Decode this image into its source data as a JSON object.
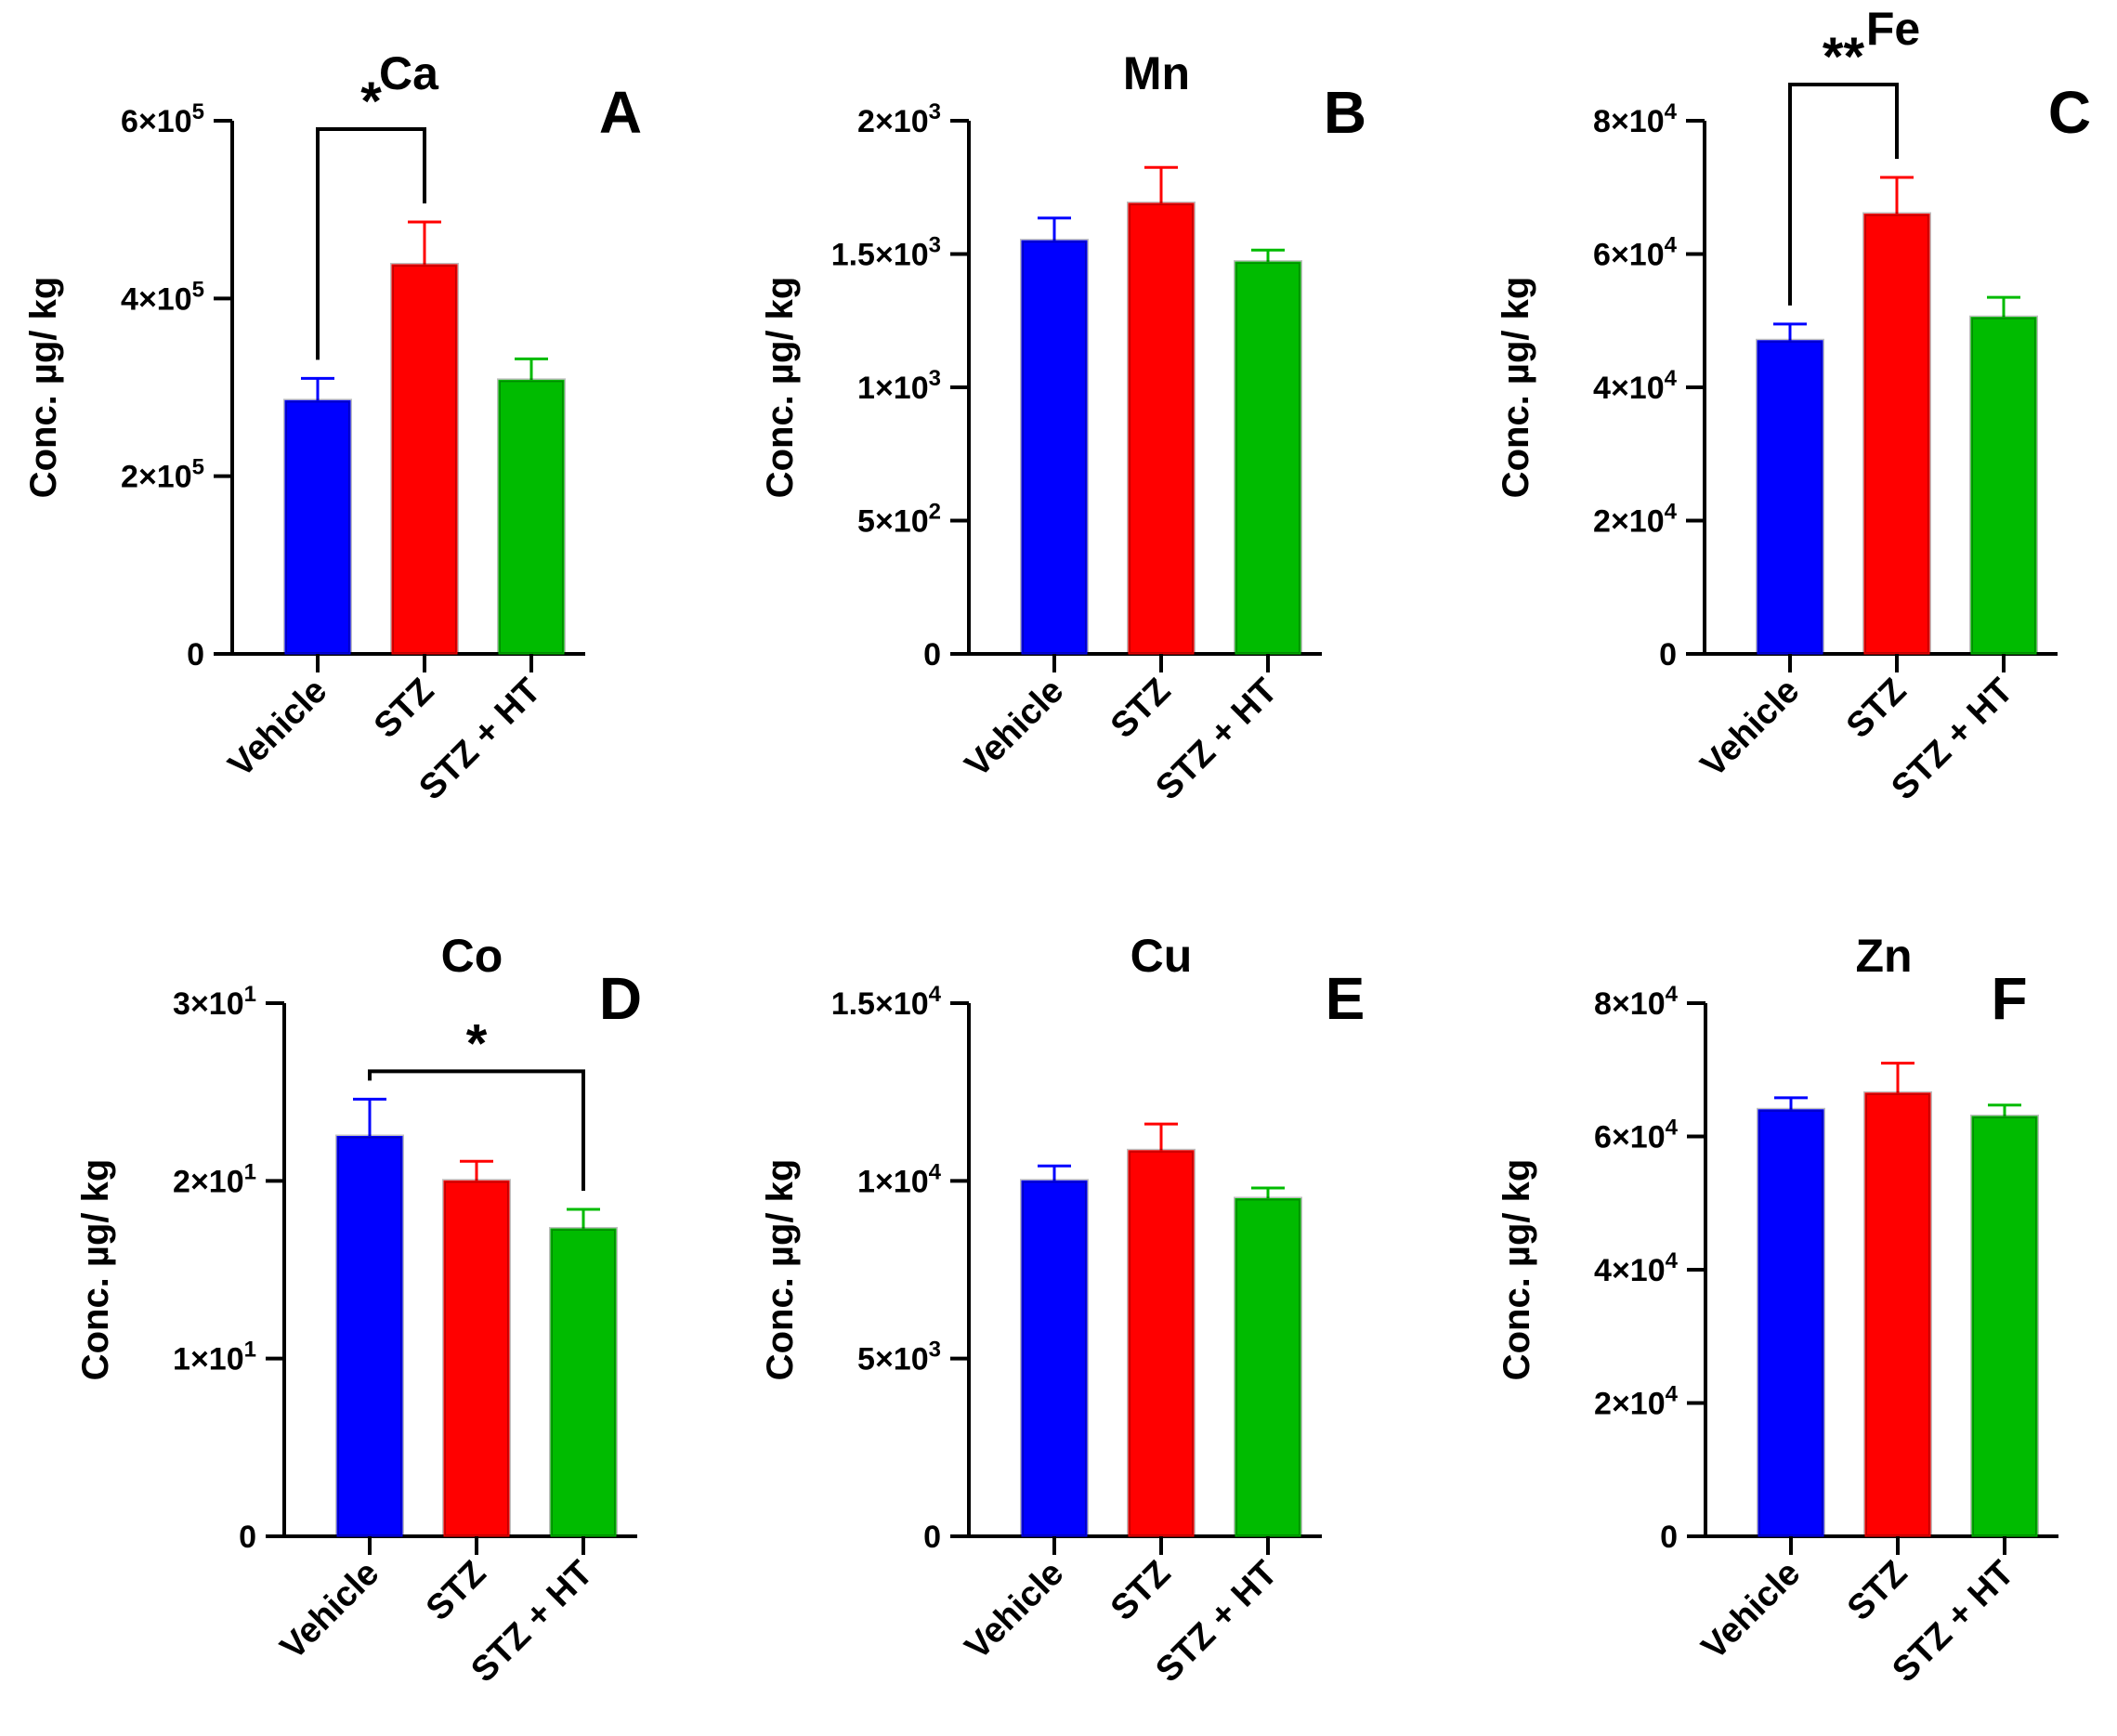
{
  "colors": {
    "Vehicle": "#0000ff",
    "STZ": "#ff0000",
    "STZ + HT": "#00bb00",
    "axis": "#000000"
  },
  "chart_data": [
    {
      "type": "bar",
      "panel": "A",
      "title": "Ca",
      "categories": [
        "Vehicle",
        "STZ",
        "STZ + HT"
      ],
      "values": [
        285000,
        438000,
        308000
      ],
      "error": [
        25000,
        48000,
        24000
      ],
      "ylim": [
        0,
        600000
      ],
      "yticks": [
        {
          "v": 0,
          "m": "0",
          "e": ""
        },
        {
          "v": 200000,
          "m": "2×10",
          "e": "5"
        },
        {
          "v": 400000,
          "m": "4×10",
          "e": "5"
        },
        {
          "v": 600000,
          "m": "6×10",
          "e": "5"
        }
      ],
      "ylabel": "Conc. µg/ kg",
      "significance": [
        {
          "from": 0,
          "to": 1,
          "label": "*"
        }
      ]
    },
    {
      "type": "bar",
      "panel": "B",
      "title": "Mn",
      "categories": [
        "Vehicle",
        "STZ",
        "STZ + HT"
      ],
      "values": [
        1550,
        1690,
        1470
      ],
      "error": [
        85,
        135,
        45
      ],
      "ylim": [
        0,
        2000
      ],
      "yticks": [
        {
          "v": 0,
          "m": "0",
          "e": ""
        },
        {
          "v": 500,
          "m": "5×10",
          "e": "2"
        },
        {
          "v": 1000,
          "m": "1×10",
          "e": "3"
        },
        {
          "v": 1500,
          "m": "1.5×10",
          "e": "3"
        },
        {
          "v": 2000,
          "m": "2×10",
          "e": "3"
        }
      ],
      "ylabel": "Conc. µg/ kg",
      "significance": []
    },
    {
      "type": "bar",
      "panel": "C",
      "title": "Fe",
      "categories": [
        "Vehicle",
        "STZ",
        "STZ + HT"
      ],
      "values": [
        47000,
        66000,
        50500
      ],
      "error": [
        2500,
        5500,
        3000
      ],
      "ylim": [
        0,
        80000
      ],
      "yticks": [
        {
          "v": 0,
          "m": "0",
          "e": ""
        },
        {
          "v": 20000,
          "m": "2×10",
          "e": "4"
        },
        {
          "v": 40000,
          "m": "4×10",
          "e": "4"
        },
        {
          "v": 60000,
          "m": "6×10",
          "e": "4"
        },
        {
          "v": 80000,
          "m": "8×10",
          "e": "4"
        }
      ],
      "ylabel": "Conc. µg/ kg",
      "significance": [
        {
          "from": 0,
          "to": 1,
          "label": "**"
        }
      ]
    },
    {
      "type": "bar",
      "panel": "D",
      "title": "Co",
      "categories": [
        "Vehicle",
        "STZ",
        "STZ + HT"
      ],
      "values": [
        22.5,
        20,
        17.3
      ],
      "error": [
        2.1,
        1.1,
        1.1
      ],
      "ylim": [
        0,
        30
      ],
      "yticks": [
        {
          "v": 0,
          "m": "0",
          "e": ""
        },
        {
          "v": 10,
          "m": "1×10",
          "e": "1"
        },
        {
          "v": 20,
          "m": "2×10",
          "e": "1"
        },
        {
          "v": 30,
          "m": "3×10",
          "e": "1"
        }
      ],
      "ylabel": "Conc. µg/ kg",
      "significance": [
        {
          "from": 0,
          "to": 2,
          "label": "*"
        }
      ]
    },
    {
      "type": "bar",
      "panel": "E",
      "title": "Cu",
      "categories": [
        "Vehicle",
        "STZ",
        "STZ + HT"
      ],
      "values": [
        10000,
        10850,
        9500
      ],
      "error": [
        420,
        750,
        300
      ],
      "ylim": [
        0,
        15000
      ],
      "yticks": [
        {
          "v": 0,
          "m": "0",
          "e": ""
        },
        {
          "v": 5000,
          "m": "5×10",
          "e": "3"
        },
        {
          "v": 10000,
          "m": "1×10",
          "e": "4"
        },
        {
          "v": 15000,
          "m": "1.5×10",
          "e": "4"
        }
      ],
      "ylabel": "Conc. µg/ kg",
      "significance": []
    },
    {
      "type": "bar",
      "panel": "F",
      "title": "Zn",
      "categories": [
        "Vehicle",
        "STZ",
        "STZ + HT"
      ],
      "values": [
        64000,
        66500,
        63000
      ],
      "error": [
        1800,
        4500,
        1700
      ],
      "ylim": [
        0,
        80000
      ],
      "yticks": [
        {
          "v": 0,
          "m": "0",
          "e": ""
        },
        {
          "v": 20000,
          "m": "2×10",
          "e": "4"
        },
        {
          "v": 40000,
          "m": "4×10",
          "e": "4"
        },
        {
          "v": 60000,
          "m": "6×10",
          "e": "4"
        },
        {
          "v": 80000,
          "m": "8×10",
          "e": "4"
        }
      ],
      "ylabel": "Conc. µg/ kg",
      "significance": []
    }
  ]
}
